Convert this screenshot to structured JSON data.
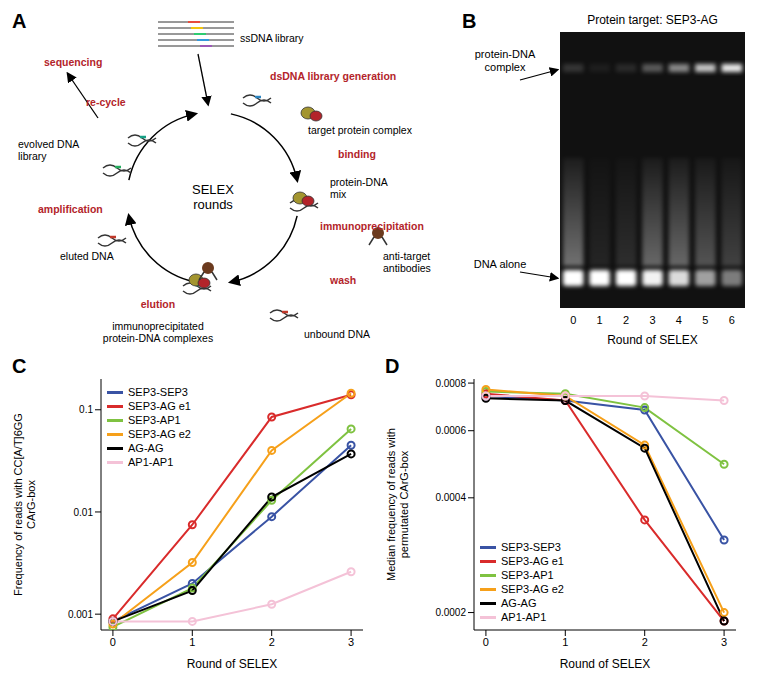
{
  "diagram": {
    "panel": "A",
    "center_label": "SELEX rounds",
    "nodes": [
      {
        "label": "ssDNA library",
        "color": "#000000"
      },
      {
        "label": "dsDNA library generation",
        "color": "#b3242a"
      },
      {
        "label": "target protein complex",
        "color": "#000000"
      },
      {
        "label": "binding",
        "color": "#b3242a"
      },
      {
        "label": "protein-DNA mix",
        "color": "#000000"
      },
      {
        "label": "immunoprecipitation",
        "color": "#b3242a"
      },
      {
        "label": "anti-target antibodies",
        "color": "#000000"
      },
      {
        "label": "wash",
        "color": "#b3242a"
      },
      {
        "label": "unbound DNA",
        "color": "#000000"
      },
      {
        "label": "elution",
        "color": "#b3242a"
      },
      {
        "label": "immunoprecipitated protein-DNA complexes",
        "color": "#000000"
      },
      {
        "label": "eluted DNA",
        "color": "#000000"
      },
      {
        "label": "amplification",
        "color": "#b3242a"
      },
      {
        "label": "evolved DNA library",
        "color": "#000000"
      },
      {
        "label": "re-cycle",
        "color": "#b3242a"
      },
      {
        "label": "sequencing",
        "color": "#b3242a"
      }
    ]
  },
  "gel": {
    "panel": "B",
    "title": "Protein target: SEP3-AG",
    "complex_label": "protein-DNA complex",
    "free_label": "DNA alone",
    "x_label": "Round of SELEX",
    "lanes": [
      0,
      1,
      2,
      3,
      4,
      5,
      6
    ],
    "complex_band": [
      0.15,
      0.05,
      0.1,
      0.3,
      0.5,
      0.75,
      0.9
    ],
    "smear": [
      0.5,
      0.1,
      0.15,
      0.45,
      0.45,
      0.35,
      0.25
    ],
    "free_band": [
      1,
      1,
      1,
      0.95,
      0.85,
      0.6,
      0.45
    ]
  },
  "chart_data": [
    {
      "panel": "C",
      "type": "line",
      "x_label": "Round of SELEX",
      "y_label": "Frequency of reads with CC[A/T]6GG CArG-box",
      "x": [
        0,
        1,
        2,
        3
      ],
      "xlim": [
        -0.15,
        3.15
      ],
      "xticks": [
        0,
        1,
        2,
        3
      ],
      "ylim": [
        0.0007,
        0.2
      ],
      "yticks": [
        0.001,
        0.01,
        0.1
      ],
      "log": "y",
      "legend": "upper left",
      "marker": "circle",
      "series": [
        {
          "name": "SEP3-SEP3",
          "color": "#3953a4",
          "values": [
            0.00085,
            0.002,
            0.009,
            0.045
          ]
        },
        {
          "name": "SEP3-AG e1",
          "color": "#d92b2b",
          "values": [
            0.0009,
            0.0075,
            0.085,
            0.14
          ]
        },
        {
          "name": "SEP3-AP1",
          "color": "#7fc241",
          "values": [
            0.00075,
            0.0018,
            0.013,
            0.065
          ]
        },
        {
          "name": "SEP3-AG e2",
          "color": "#f6a01a",
          "values": [
            0.0008,
            0.0032,
            0.04,
            0.145
          ]
        },
        {
          "name": "AG-AG",
          "color": "#000000",
          "values": [
            0.00085,
            0.0017,
            0.014,
            0.037
          ]
        },
        {
          "name": "AP1-AP1",
          "color": "#f4c2d7",
          "values": [
            0.00085,
            0.00085,
            0.00125,
            0.0026
          ]
        }
      ]
    },
    {
      "panel": "D",
      "type": "line",
      "x_label": "Round of SELEX",
      "y_label": "Median frequency of reads with permutated CArG-box",
      "x": [
        0,
        1,
        2,
        3
      ],
      "xlim": [
        -0.15,
        3.15
      ],
      "xticks": [
        0,
        1,
        2,
        3
      ],
      "ylim": [
        0.00018,
        0.00082
      ],
      "yticks": [
        0.0002,
        0.0004,
        0.0006,
        0.0008
      ],
      "log": "y",
      "legend": "lower left",
      "marker": "circle",
      "series": [
        {
          "name": "SEP3-SEP3",
          "color": "#3953a4",
          "values": [
            0.00074,
            0.00072,
            0.00068,
            0.00031
          ]
        },
        {
          "name": "SEP3-AG e1",
          "color": "#d92b2b",
          "values": [
            0.00075,
            0.00072,
            0.00035,
            0.00019
          ]
        },
        {
          "name": "SEP3-AP1",
          "color": "#7fc241",
          "values": [
            0.00076,
            0.00075,
            0.00069,
            0.00049
          ]
        },
        {
          "name": "SEP3-AG e2",
          "color": "#f6a01a",
          "values": [
            0.00077,
            0.00074,
            0.00055,
            0.0002
          ]
        },
        {
          "name": "AG-AG",
          "color": "#000000",
          "values": [
            0.00073,
            0.00072,
            0.00054,
            0.00019
          ]
        },
        {
          "name": "AP1-AP1",
          "color": "#f4c2d7",
          "values": [
            0.00074,
            0.00074,
            0.00074,
            0.00072
          ]
        }
      ]
    }
  ]
}
